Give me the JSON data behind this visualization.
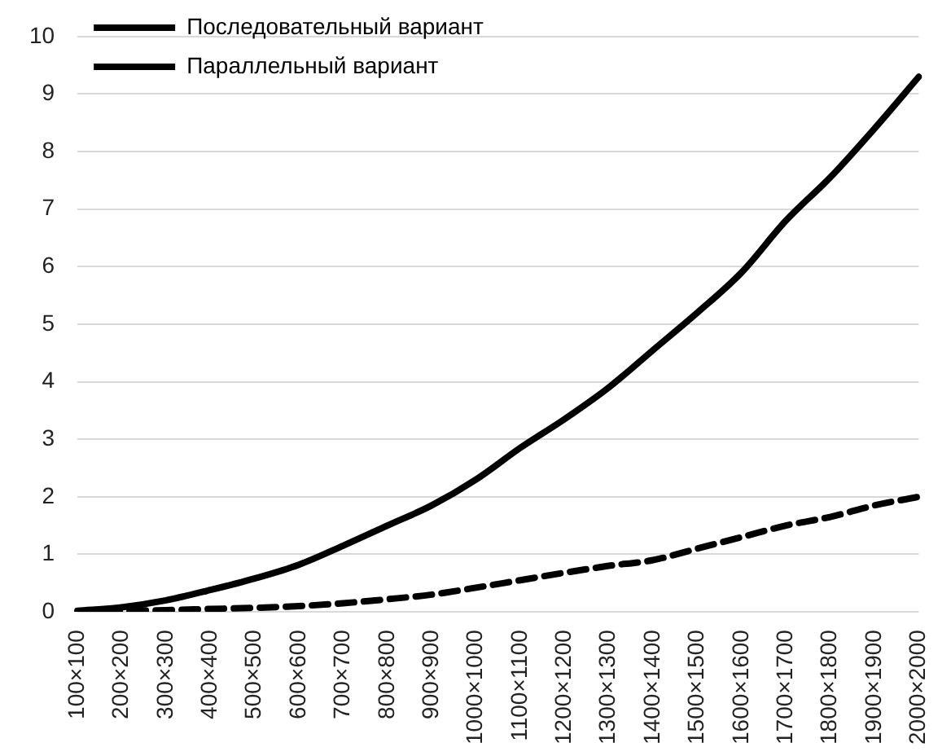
{
  "chart_data": {
    "type": "line",
    "categories": [
      "100×100",
      "200×200",
      "300×300",
      "400×400",
      "500×500",
      "600×600",
      "700×700",
      "800×800",
      "900×900",
      "1000×1000",
      "1100×1100",
      "1200×1200",
      "1300×1300",
      "1400×1400",
      "1500×1500",
      "1600×1600",
      "1700×1700",
      "1800×1800",
      "1900×1900",
      "2000×2000"
    ],
    "series": [
      {
        "name": "Последовательный вариант",
        "color": "#000000",
        "line_style": "solid",
        "values": [
          0.02,
          0.08,
          0.2,
          0.38,
          0.58,
          0.82,
          1.15,
          1.5,
          1.85,
          2.3,
          2.85,
          3.35,
          3.9,
          4.55,
          5.2,
          5.9,
          6.8,
          7.55,
          8.4,
          9.3
        ]
      },
      {
        "name": "Параллельный вариант",
        "color": "#000000",
        "line_style": "dashed",
        "values": [
          0.01,
          0.02,
          0.03,
          0.05,
          0.07,
          0.1,
          0.15,
          0.22,
          0.3,
          0.42,
          0.55,
          0.68,
          0.8,
          0.9,
          1.1,
          1.3,
          1.5,
          1.65,
          1.85,
          2.0
        ]
      }
    ],
    "ylim": [
      0,
      10
    ],
    "yticks": [
      0,
      1,
      2,
      3,
      4,
      5,
      6,
      7,
      8,
      9,
      10
    ],
    "grid": "y",
    "legend": "top left",
    "marker": "none"
  }
}
